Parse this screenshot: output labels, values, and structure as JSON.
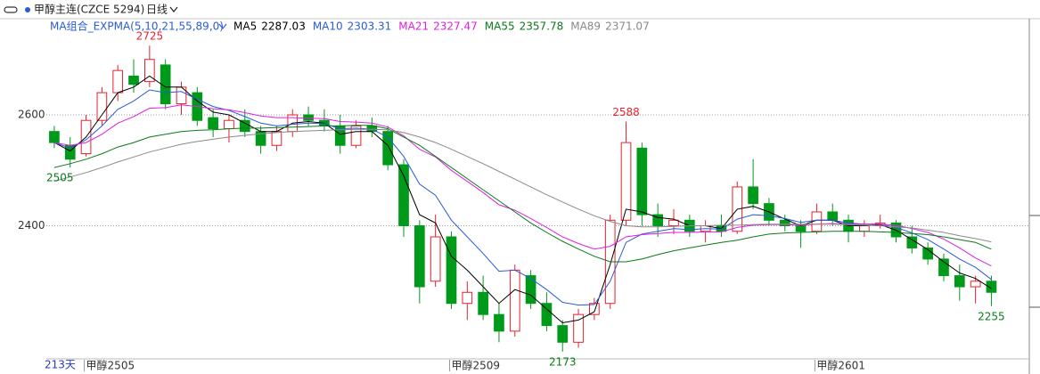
{
  "chart_data": {
    "type": "candlestick",
    "title": "甲醇主连(CZCE 5294)",
    "period": "日线",
    "indicator": "MA组合_EXPMA(5,10,21,55,89,0)",
    "period_label": "213天",
    "ylim": [
      2160,
      2775
    ],
    "yticks": [
      2400,
      2600
    ],
    "grid": true,
    "xlim": [
      -0.5,
      61.5
    ],
    "xticks": [
      {
        "value": 2,
        "label": "甲醇2505"
      },
      {
        "value": 25,
        "label": "甲醇2509"
      },
      {
        "value": 48,
        "label": "甲醇2601"
      }
    ],
    "up_color": "#e8202a",
    "down_color": "#009a1a",
    "open": [
      2570,
      2545,
      2530,
      2590,
      2640,
      2670,
      2660,
      2690,
      2620,
      2640,
      2595,
      2575,
      2590,
      2570,
      2545,
      2570,
      2600,
      2590,
      2580,
      2545,
      2580,
      2570,
      2510,
      2400,
      2300,
      2380,
      2260,
      2280,
      2240,
      2210,
      2310,
      2260,
      2220,
      2190,
      2240,
      2260,
      2410,
      2540,
      2420,
      2400,
      2410,
      2390,
      2400,
      2390,
      2470,
      2440,
      2410,
      2400,
      2390,
      2425,
      2410,
      2390,
      2400,
      2405,
      2380,
      2360,
      2340,
      2310,
      2290,
      2300
    ],
    "high": [
      2580,
      2560,
      2600,
      2650,
      2690,
      2700,
      2725,
      2700,
      2660,
      2650,
      2610,
      2600,
      2610,
      2580,
      2580,
      2610,
      2615,
      2610,
      2600,
      2590,
      2595,
      2580,
      2520,
      2410,
      2420,
      2390,
      2300,
      2310,
      2260,
      2330,
      2320,
      2280,
      2230,
      2250,
      2270,
      2420,
      2588,
      2550,
      2440,
      2430,
      2420,
      2410,
      2420,
      2480,
      2520,
      2450,
      2420,
      2410,
      2440,
      2440,
      2420,
      2410,
      2420,
      2410,
      2400,
      2370,
      2350,
      2330,
      2310,
      2310
    ],
    "low": [
      2540,
      2505,
      2525,
      2580,
      2625,
      2640,
      2650,
      2610,
      2600,
      2580,
      2560,
      2550,
      2560,
      2530,
      2535,
      2560,
      2580,
      2570,
      2530,
      2540,
      2560,
      2500,
      2380,
      2260,
      2290,
      2250,
      2230,
      2230,
      2190,
      2200,
      2250,
      2210,
      2173,
      2180,
      2230,
      2250,
      2400,
      2400,
      2380,
      2385,
      2380,
      2370,
      2380,
      2385,
      2430,
      2400,
      2390,
      2360,
      2385,
      2400,
      2370,
      2380,
      2395,
      2370,
      2350,
      2330,
      2300,
      2265,
      2260,
      2255
    ],
    "close": [
      2550,
      2520,
      2590,
      2640,
      2680,
      2655,
      2700,
      2620,
      2650,
      2590,
      2575,
      2590,
      2570,
      2545,
      2570,
      2600,
      2590,
      2580,
      2545,
      2580,
      2570,
      2510,
      2400,
      2290,
      2380,
      2260,
      2280,
      2240,
      2210,
      2320,
      2260,
      2220,
      2190,
      2240,
      2260,
      2410,
      2550,
      2420,
      2400,
      2410,
      2390,
      2400,
      2390,
      2470,
      2440,
      2410,
      2400,
      2390,
      2425,
      2410,
      2390,
      2400,
      2405,
      2380,
      2360,
      2340,
      2310,
      2290,
      2300,
      2280
    ],
    "marked_highs": [
      2725,
      2588
    ],
    "marked_lows": [
      2505,
      2173,
      2255
    ],
    "series": [
      {
        "name": "MA5",
        "color": "#000000",
        "values": [
          2550,
          2535,
          2560,
          2600,
          2640,
          2650,
          2670,
          2650,
          2650,
          2625,
          2605,
          2600,
          2585,
          2570,
          2570,
          2585,
          2588,
          2585,
          2565,
          2570,
          2570,
          2545,
          2490,
          2420,
          2405,
          2345,
          2320,
          2290,
          2260,
          2285,
          2275,
          2250,
          2225,
          2230,
          2245,
          2330,
          2430,
          2425,
          2415,
          2412,
          2400,
          2400,
          2395,
          2430,
          2435,
          2425,
          2412,
          2400,
          2410,
          2410,
          2400,
          2400,
          2402,
          2392,
          2375,
          2357,
          2335,
          2315,
          2305,
          2287.03
        ]
      },
      {
        "name": "MA10",
        "color": "#2a5bd7",
        "values": [
          2550,
          2540,
          2555,
          2580,
          2610,
          2625,
          2645,
          2640,
          2642,
          2628,
          2615,
          2608,
          2597,
          2585,
          2580,
          2583,
          2585,
          2584,
          2575,
          2576,
          2574,
          2560,
          2525,
          2475,
          2455,
          2410,
          2380,
          2350,
          2318,
          2320,
          2305,
          2285,
          2262,
          2257,
          2258,
          2300,
          2370,
          2385,
          2390,
          2395,
          2393,
          2395,
          2394,
          2412,
          2420,
          2418,
          2413,
          2406,
          2410,
          2410,
          2405,
          2403,
          2403,
          2397,
          2387,
          2375,
          2358,
          2340,
          2325,
          2303.31
        ]
      },
      {
        "name": "MA21",
        "color": "#e020e0",
        "values": [
          2550,
          2545,
          2550,
          2565,
          2585,
          2597,
          2612,
          2613,
          2618,
          2615,
          2611,
          2609,
          2604,
          2598,
          2595,
          2595,
          2594,
          2593,
          2588,
          2587,
          2585,
          2578,
          2562,
          2538,
          2524,
          2500,
          2480,
          2460,
          2438,
          2428,
          2413,
          2397,
          2380,
          2368,
          2358,
          2363,
          2380,
          2384,
          2386,
          2388,
          2388,
          2389,
          2389,
          2397,
          2401,
          2402,
          2402,
          2401,
          2403,
          2404,
          2403,
          2403,
          2403,
          2401,
          2395,
          2388,
          2376,
          2360,
          2342,
          2327.47
        ]
      },
      {
        "name": "MA55",
        "color": "#0a7a1a",
        "values": [
          2505,
          2512,
          2520,
          2530,
          2542,
          2550,
          2560,
          2565,
          2570,
          2572,
          2573,
          2575,
          2576,
          2576,
          2577,
          2578,
          2579,
          2580,
          2580,
          2581,
          2581,
          2575,
          2560,
          2545,
          2525,
          2505,
          2485,
          2465,
          2445,
          2425,
          2405,
          2388,
          2372,
          2358,
          2345,
          2335,
          2335,
          2340,
          2348,
          2355,
          2360,
          2365,
          2370,
          2374,
          2380,
          2385,
          2387,
          2388,
          2389,
          2390,
          2390,
          2390,
          2389,
          2388,
          2386,
          2384,
          2380,
          2375,
          2370,
          2357.78
        ]
      },
      {
        "name": "MA89",
        "color": "#8a8a8a",
        "values": [
          2480,
          2488,
          2496,
          2505,
          2515,
          2524,
          2533,
          2540,
          2547,
          2552,
          2556,
          2560,
          2563,
          2566,
          2568,
          2570,
          2571,
          2572,
          2573,
          2574,
          2574,
          2573,
          2568,
          2560,
          2550,
          2538,
          2525,
          2512,
          2498,
          2484,
          2470,
          2456,
          2443,
          2430,
          2418,
          2408,
          2400,
          2398,
          2398,
          2399,
          2400,
          2400,
          2401,
          2401,
          2402,
          2403,
          2403,
          2403,
          2403,
          2403,
          2402,
          2401,
          2400,
          2398,
          2396,
          2392,
          2388,
          2382,
          2377,
          2371.07
        ]
      }
    ]
  }
}
